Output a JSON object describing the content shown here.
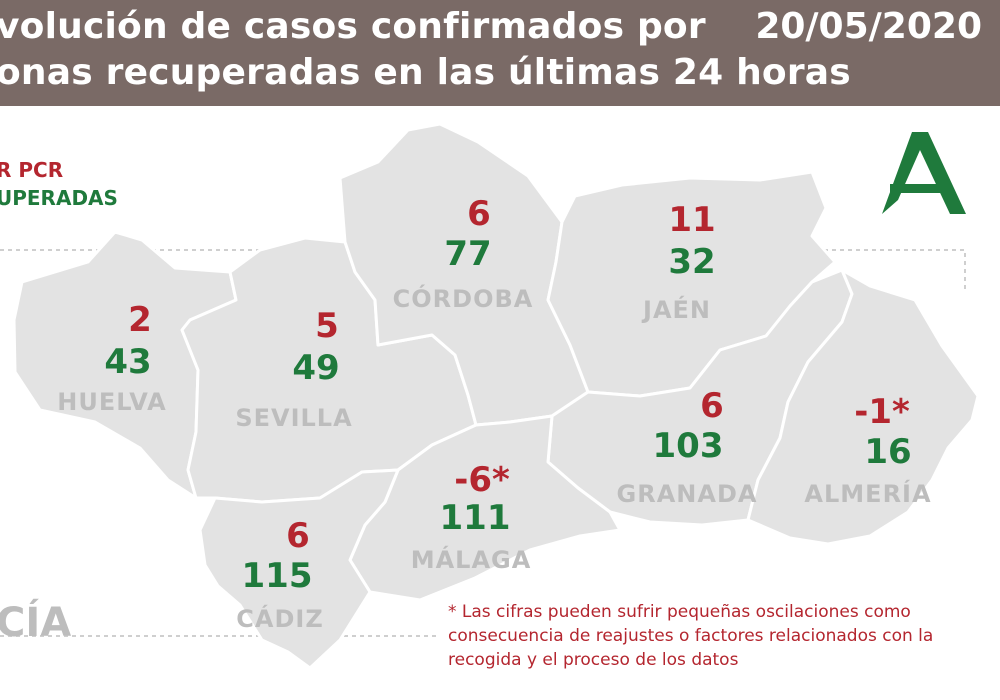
{
  "header": {
    "title_line1": "volución de casos confirmados por",
    "title_line2": "onas recuperadas en las últimas 24 horas",
    "date": "20/05/2020"
  },
  "legend": {
    "pcr": "R PCR",
    "recovered": "UPERADAS"
  },
  "colors": {
    "header_bg": "#7a6a66",
    "cases": "#b4262f",
    "recovered": "#1f7a3c",
    "province_fill": "#e3e3e3",
    "logo": "#1f7a3c"
  },
  "logo_icon": "junta-andalucia-logo-icon",
  "provinces": [
    {
      "name": "HUELVA",
      "cases": "2",
      "recovered": "43"
    },
    {
      "name": "SEVILLA",
      "cases": "5",
      "recovered": "49"
    },
    {
      "name": "CÓRDOBA",
      "cases": "6",
      "recovered": "77"
    },
    {
      "name": "JAÉN",
      "cases": "11",
      "recovered": "32"
    },
    {
      "name": "GRANADA",
      "cases": "6",
      "recovered": "103"
    },
    {
      "name": "ALMERÍA",
      "cases": "-1*",
      "recovered": "16"
    },
    {
      "name": "MÁLAGA",
      "cases": "-6*",
      "recovered": "111"
    },
    {
      "name": "CÁDIZ",
      "cases": "6",
      "recovered": "115"
    }
  ],
  "brand_text": "CÍA",
  "footnote": "* Las cifras pueden sufrir pequeñas oscilaciones como consecuencia de reajustes o factores relacionados con la recogida y el proceso de los datos"
}
